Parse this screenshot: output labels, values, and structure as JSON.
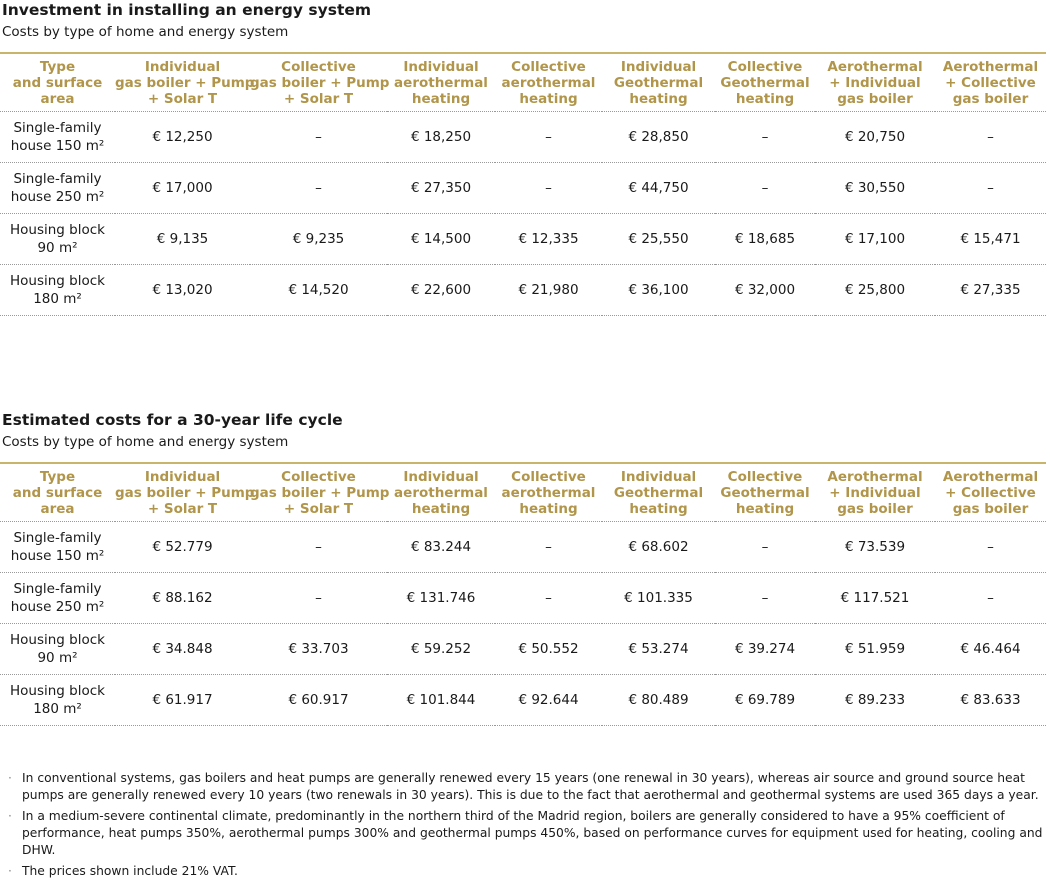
{
  "tables": [
    {
      "title": "Investment in installing an energy system",
      "subtitle": "Costs by type of home and energy system",
      "header": [
        [
          "Type",
          "and surface",
          "area"
        ],
        [
          "Individual",
          "gas boiler + Pump",
          "+ Solar T"
        ],
        [
          "Collective",
          "gas boiler + Pump",
          "+ Solar T"
        ],
        [
          "Individual",
          "aerothermal",
          "heating"
        ],
        [
          "Collective",
          "aerothermal",
          "heating"
        ],
        [
          "Individual",
          "Geothermal",
          "heating"
        ],
        [
          "Collective",
          "Geothermal",
          "heating"
        ],
        [
          "Aerothermal",
          "+ Individual",
          "gas boiler"
        ],
        [
          "Aerothermal",
          "+ Collective",
          "gas boiler"
        ]
      ],
      "rows": [
        {
          "label": [
            "Single-family",
            "house 150 m²"
          ],
          "cells": [
            "€ 12,250",
            "–",
            "€ 18,250",
            "–",
            "€ 28,850",
            "–",
            "€ 20,750",
            "–"
          ]
        },
        {
          "label": [
            "Single-family",
            "house 250 m²"
          ],
          "cells": [
            "€ 17,000",
            "–",
            "€ 27,350",
            "–",
            "€ 44,750",
            "–",
            "€ 30,550",
            "–"
          ]
        },
        {
          "label": [
            "Housing block",
            "90 m²"
          ],
          "cells": [
            "€ 9,135",
            "€ 9,235",
            "€ 14,500",
            "€ 12,335",
            "€ 25,550",
            "€ 18,685",
            "€ 17,100",
            "€ 15,471"
          ]
        },
        {
          "label": [
            "Housing block",
            "180 m²"
          ],
          "cells": [
            "€ 13,020",
            "€ 14,520",
            "€ 22,600",
            "€ 21,980",
            "€ 36,100",
            "€ 32,000",
            "€ 25,800",
            "€ 27,335"
          ]
        }
      ]
    },
    {
      "title": "Estimated costs for a 30-year life cycle",
      "subtitle": "Costs by type of home and energy system",
      "header": [
        [
          "Type",
          "and surface",
          "area"
        ],
        [
          "Individual",
          "gas boiler + Pump",
          "+ Solar T"
        ],
        [
          "Collective",
          "gas boiler + Pump",
          "+ Solar T"
        ],
        [
          "Individual",
          "aerothermal",
          "heating"
        ],
        [
          "Collective",
          "aerothermal",
          "heating"
        ],
        [
          "Individual",
          "Geothermal",
          "heating"
        ],
        [
          "Collective",
          "Geothermal",
          "heating"
        ],
        [
          "Aerothermal",
          "+ Individual",
          "gas boiler"
        ],
        [
          "Aerothermal",
          "+ Collective",
          "gas boiler"
        ]
      ],
      "rows": [
        {
          "label": [
            "Single-family",
            "house 150 m²"
          ],
          "cells": [
            "€ 52.779",
            "–",
            "€ 83.244",
            "–",
            "€ 68.602",
            "–",
            "€ 73.539",
            "–"
          ]
        },
        {
          "label": [
            "Single-family",
            "house 250 m²"
          ],
          "cells": [
            "€ 88.162",
            "–",
            "€ 131.746",
            "–",
            "€ 101.335",
            "–",
            "€ 117.521",
            "–"
          ]
        },
        {
          "label": [
            "Housing block",
            "90 m²"
          ],
          "cells": [
            "€ 34.848",
            "€ 33.703",
            "€ 59.252",
            "€ 50.552",
            "€ 53.274",
            "€ 39.274",
            "€ 51.959",
            "€ 46.464"
          ]
        },
        {
          "label": [
            "Housing block",
            "180 m²"
          ],
          "cells": [
            "€ 61.917",
            "€ 60.917",
            "€ 101.844",
            "€ 92.644",
            "€ 80.489",
            "€ 69.789",
            "€ 89.233",
            "€ 83.633"
          ]
        }
      ]
    }
  ],
  "notes": [
    "In conventional systems, gas boilers and heat pumps are generally renewed every 15 years (one renewal in 30 years), whereas air source and ground source heat pumps are generally renewed every 10 years (two renewals in 30 years). This is due to the fact that aerothermal and geothermal systems are used 365 days a year.",
    "In a medium-severe continental climate, predominantly in the northern third of the Madrid region, boilers are generally considered to have a 95% coefficient of performance, heat pumps 350%, aerothermal pumps 300% and geothermal pumps 450%, based on performance curves for equipment used for heating, cooling and DHW.",
    "The prices shown include 21% VAT."
  ]
}
